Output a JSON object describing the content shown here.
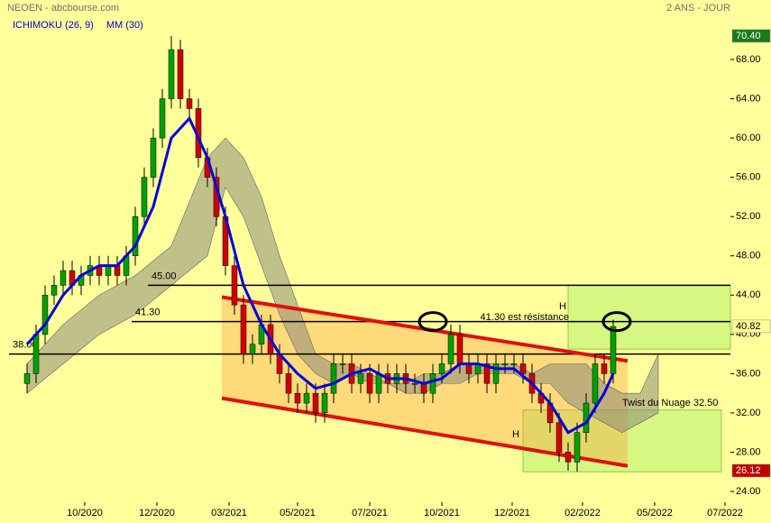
{
  "chart_data": {
    "type": "candlestick",
    "title": "NEOEN - abcbourse.com",
    "period": "2 ANS - JOUR",
    "indicators": [
      {
        "name": "ICHIMOKU (26, 9)",
        "color": "#0000cc"
      },
      {
        "name": "MM (30)",
        "color": "#0000cc"
      }
    ],
    "xlim": [
      0,
      400
    ],
    "ylim": [
      22.9,
      74.06
    ],
    "xticks": [
      {
        "value": 42,
        "label": "10/2020"
      },
      {
        "value": 82,
        "label": "12/2020"
      },
      {
        "value": 122,
        "label": "03/2021"
      },
      {
        "value": 160,
        "label": "05/2021"
      },
      {
        "value": 200,
        "label": "07/2021"
      },
      {
        "value": 240,
        "label": "10/2021"
      },
      {
        "value": 279,
        "label": "12/2021"
      },
      {
        "value": 318,
        "label": "02/2022"
      },
      {
        "value": 358,
        "label": "05/2022"
      },
      {
        "value": 397,
        "label": "07/2022"
      }
    ],
    "yticks": [
      {
        "value": 24,
        "label": "24.00"
      },
      {
        "value": 28,
        "label": "28.00"
      },
      {
        "value": 32,
        "label": "32.00"
      },
      {
        "value": 36,
        "label": "36.00"
      },
      {
        "value": 40,
        "label": "40.00"
      },
      {
        "value": 44,
        "label": "44.00"
      },
      {
        "value": 48,
        "label": "48.00"
      },
      {
        "value": 52,
        "label": "52.00"
      },
      {
        "value": 56,
        "label": "56.00"
      },
      {
        "value": 60,
        "label": "60.00"
      },
      {
        "value": 64,
        "label": "64.00"
      },
      {
        "value": 68,
        "label": "68.00"
      }
    ],
    "up_color": "#00a000",
    "down_color": "#d00000",
    "x": [
      10,
      15,
      20,
      25,
      30,
      35,
      40,
      45,
      50,
      55,
      60,
      65,
      70,
      75,
      80,
      85,
      90,
      95,
      100,
      105,
      110,
      115,
      120,
      125,
      130,
      135,
      140,
      145,
      150,
      155,
      160,
      165,
      170,
      175,
      180,
      185,
      190,
      195,
      200,
      205,
      210,
      215,
      220,
      225,
      230,
      235,
      240,
      245,
      250,
      255,
      260,
      265,
      270,
      275,
      280,
      285,
      290,
      295,
      300,
      305,
      310,
      315,
      320,
      325,
      330,
      335
    ],
    "open": [
      35,
      36,
      40,
      44,
      45,
      46.5,
      45,
      46,
      47,
      46,
      47,
      46,
      48,
      52,
      56,
      60,
      64,
      69,
      64,
      63,
      58,
      56,
      52,
      47,
      43,
      38,
      39,
      41,
      38,
      36,
      34,
      33,
      34,
      32,
      34,
      37,
      37,
      35,
      36,
      34,
      36,
      35,
      36,
      35,
      35,
      34,
      36,
      37,
      40,
      37,
      36,
      37,
      35,
      37,
      37,
      37,
      36,
      34,
      33,
      31,
      28,
      27,
      30,
      33,
      37,
      36
    ],
    "high": [
      37,
      41,
      45,
      46,
      47.5,
      47.5,
      47,
      48,
      48,
      48,
      48,
      49,
      53,
      57,
      61,
      65,
      70.4,
      70,
      65,
      64,
      59,
      57,
      53,
      48,
      44,
      40,
      42,
      42,
      39,
      37,
      35,
      35,
      35,
      35,
      38,
      38,
      38,
      37,
      37,
      37,
      37,
      37,
      37,
      36,
      36,
      37,
      38,
      41,
      41,
      38,
      38,
      38,
      38,
      38,
      38,
      38,
      37,
      35,
      34,
      32,
      29,
      31,
      34,
      38,
      38,
      41.5
    ],
    "low": [
      34,
      35,
      39,
      43,
      44,
      44,
      44,
      45,
      45,
      45,
      45,
      45,
      47,
      51,
      55,
      59,
      63,
      63,
      62,
      57,
      55,
      51,
      46,
      42,
      37,
      37,
      38,
      37,
      35,
      33,
      32,
      32,
      31,
      31,
      33,
      36,
      34,
      34,
      33,
      33,
      34,
      34,
      34,
      34,
      33,
      33,
      35,
      36,
      36,
      35,
      35,
      34,
      34,
      36,
      36,
      35,
      33,
      32,
      30,
      27,
      26.12,
      26,
      29,
      32,
      35,
      35
    ],
    "close": [
      36,
      40,
      44,
      45,
      46.5,
      45,
      46,
      47,
      46,
      47,
      46,
      48,
      52,
      56,
      60,
      64,
      69,
      64,
      63,
      58,
      56,
      52,
      47,
      43,
      38,
      39,
      41,
      38,
      36,
      34,
      33,
      34,
      32,
      34,
      37,
      37,
      35,
      36,
      34,
      36,
      35,
      36,
      35,
      35,
      34,
      36,
      37,
      40,
      37,
      36,
      37,
      35,
      37,
      37,
      37,
      36,
      34,
      33,
      31,
      28,
      27,
      30,
      33,
      37,
      36,
      40.8
    ],
    "moving_average": {
      "color": "#0000dd",
      "x": [
        10,
        20,
        30,
        40,
        50,
        60,
        70,
        80,
        90,
        100,
        110,
        120,
        130,
        140,
        150,
        160,
        170,
        180,
        190,
        200,
        210,
        220,
        230,
        240,
        250,
        260,
        270,
        280,
        290,
        300,
        310,
        320,
        330,
        335
      ],
      "values": [
        39,
        41,
        44,
        46,
        47,
        47,
        49,
        53,
        60,
        62,
        58,
        52,
        45,
        41,
        38,
        36,
        34.5,
        35,
        36,
        36.5,
        35.5,
        35.5,
        35,
        35.5,
        37,
        37,
        36.5,
        36.5,
        35,
        33,
        30,
        31,
        34,
        36
      ]
    },
    "cloud": {
      "color": "#8c8c7a",
      "x": [
        10,
        30,
        50,
        70,
        90,
        110,
        120,
        130,
        140,
        150,
        160,
        170,
        180,
        190,
        200,
        210,
        220,
        230,
        240,
        250,
        260,
        270,
        280,
        290,
        300,
        310,
        320,
        330,
        340,
        350,
        360
      ],
      "upper": [
        37,
        41,
        44,
        46,
        49,
        58,
        60,
        58,
        54,
        48,
        43,
        38,
        37,
        37,
        36,
        35,
        35,
        36,
        36,
        37,
        37,
        37,
        37,
        36,
        37,
        37,
        37,
        35,
        34,
        34,
        38
      ],
      "lower": [
        34,
        37,
        40,
        42,
        45,
        48,
        55,
        52,
        47,
        42,
        38,
        36,
        35,
        36,
        35,
        35,
        34,
        34,
        35,
        35,
        36,
        36,
        36,
        35,
        35,
        33,
        32,
        31,
        30,
        31,
        32
      ]
    },
    "levels": [
      {
        "value": 45,
        "label": "45.00",
        "from": 77
      },
      {
        "value": 41.3,
        "label": "41.30",
        "from": 68
      },
      {
        "value": 38,
        "label": "38.00",
        "from": 0
      }
    ],
    "channel": {
      "color": "#e01010",
      "x": [
        118,
        343
      ],
      "upper": [
        43.8,
        37.3
      ],
      "lower": [
        33.5,
        26.6
      ]
    },
    "zones": [
      {
        "x": [
          310,
          400
        ],
        "y": [
          38.5,
          45
        ]
      },
      {
        "x": [
          285,
          395
        ],
        "y": [
          26,
          32.3
        ]
      }
    ],
    "annotations": [
      "H",
      "41.30 est résistance",
      "H",
      "Twist du Nuage 32.50"
    ],
    "price_tags": [
      {
        "value": 70.4,
        "label": "70.40",
        "color": "#1a7a1a",
        "text_color": "#ffffff"
      },
      {
        "value": 40.82,
        "label": "40.82",
        "color": "#ffff99",
        "text_color": "#000000"
      },
      {
        "value": 26.12,
        "label": "26.12",
        "color": "#c00000",
        "text_color": "#ffffff"
      }
    ]
  }
}
